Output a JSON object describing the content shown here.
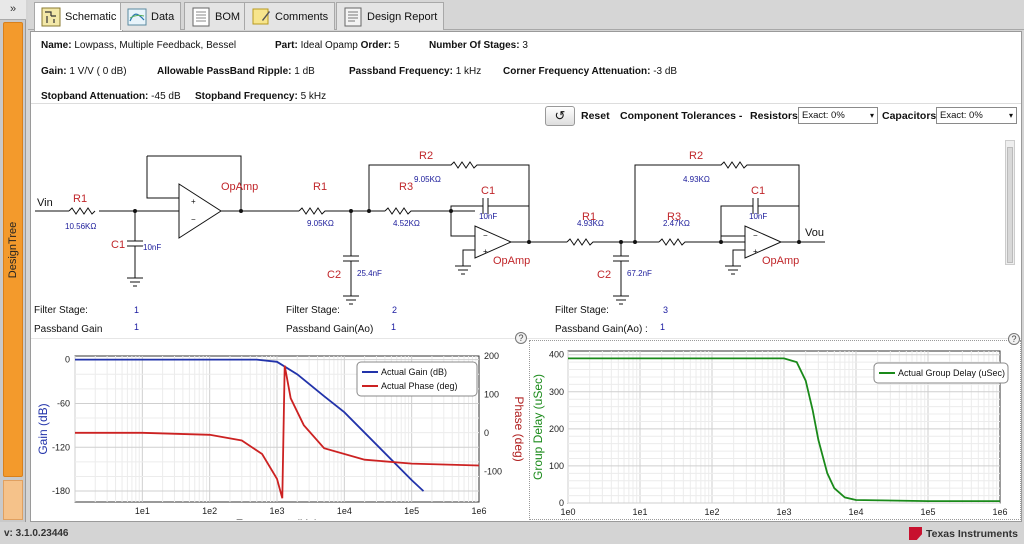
{
  "sidebar": {
    "collapse_glyph": "»",
    "design_tree_label": "DesignTree"
  },
  "tabs": [
    {
      "label": "Schematic",
      "icon": "schematic-icon",
      "active": true
    },
    {
      "label": "Data",
      "icon": "data-icon",
      "active": false
    },
    {
      "label": "BOM",
      "icon": "bom-icon",
      "active": false
    },
    {
      "label": "Comments",
      "icon": "comments-icon",
      "active": false
    },
    {
      "label": "Design Report",
      "icon": "design-report-icon",
      "active": false
    }
  ],
  "summary": {
    "name_label": "Name:",
    "name_value": "Lowpass, Multiple Feedback, Bessel",
    "part_label": "Part:",
    "part_value": "Ideal Opamp",
    "order_label": "Order:",
    "order_value": "5",
    "stages_label": "Number Of Stages:",
    "stages_value": "3",
    "gain_label": "Gain:",
    "gain_value": "1 V/V ( 0 dB)",
    "ripple_label": "Allowable PassBand Ripple:",
    "ripple_value": "1 dB",
    "pbfreq_label": "Passband Frequency:",
    "pbfreq_value": "1 kHz",
    "cfatt_label": "Corner Frequency Attenuation:",
    "cfatt_value": "-3 dB",
    "sbatt_label": "Stopband Attenuation:",
    "sbatt_value": "-45 dB",
    "sbfreq_label": "Stopband Frequency:",
    "sbfreq_value": "5 kHz"
  },
  "toolbar": {
    "reset_glyph": "↺",
    "reset_label": "Reset",
    "tolerances_label": "Component Tolerances -",
    "resistors_label": "Resistors",
    "resistors_value": "Exact: 0%",
    "capacitors_label": "Capacitors",
    "capacitors_value": "Exact: 0%",
    "dropdown_glyph": "▾"
  },
  "schematic": {
    "vin_label": "Vin",
    "vout_label": "Vou",
    "opamp_label": "OpAmp",
    "stage1": {
      "r1_name": "R1",
      "r1_value": "10.56KΩ",
      "c1_name": "C1",
      "c1_value": "10nF"
    },
    "stage2": {
      "r1_name": "R1",
      "r1_value": "9.05KΩ",
      "r2_name": "R2",
      "r2_value": "9.05KΩ",
      "r3_name": "R3",
      "r3_value": "4.52KΩ",
      "c1_name": "C1",
      "c1_value": "10nF",
      "c2_name": "C2",
      "c2_value": "25.4nF"
    },
    "stage3": {
      "r1_name": "R1",
      "r1_value": "4.93KΩ",
      "r2_name": "R2",
      "r2_value": "4.93KΩ",
      "r3_name": "R3",
      "r3_value": "2.47KΩ",
      "c1_name": "C1",
      "c1_value": "10nF",
      "c2_name": "C2",
      "c2_value": "67.2nF"
    }
  },
  "stages": [
    {
      "stage_label": "Filter Stage:",
      "stage_value": "1",
      "gain_label": "Passband Gain",
      "gain_value": "1"
    },
    {
      "stage_label": "Filter Stage:",
      "stage_value": "2",
      "gain_label": "Passband Gain(Ao)",
      "gain_value": "1"
    },
    {
      "stage_label": "Filter Stage:",
      "stage_value": "3",
      "gain_label": "Passband Gain(Ao) :",
      "gain_value": "1"
    }
  ],
  "help_glyph": "?",
  "chart_data": [
    {
      "type": "line",
      "xlabel": "Frequency (Hz)",
      "ylabel": "Gain (dB)",
      "y2label": "Phase (deg)",
      "x_scale": "log",
      "xlim": [
        1,
        1000000
      ],
      "x_ticks": [
        "1e1",
        "1e2",
        "1e3",
        "1e4",
        "1e5",
        "1e6"
      ],
      "ylim": [
        -195,
        5
      ],
      "y_ticks": [
        0,
        -60,
        -120,
        -180
      ],
      "y2lim": [
        -180,
        200
      ],
      "y2_ticks": [
        200,
        100,
        0,
        -100
      ],
      "grid": true,
      "legend_position": "top-right",
      "series": [
        {
          "name": "Actual Gain (dB)",
          "color": "#2233aa",
          "axis": "left",
          "x": [
            1,
            10,
            100,
            500,
            1000,
            2000,
            5000,
            10000,
            100000,
            150000
          ],
          "y": [
            0,
            0,
            0,
            0,
            -3,
            -20,
            -50,
            -72,
            -165,
            -180
          ]
        },
        {
          "name": "Actual Phase (deg)",
          "color": "#cc2222",
          "axis": "right",
          "x": [
            1,
            10,
            100,
            300,
            600,
            1000,
            1200,
            1300,
            1600,
            2500,
            5000,
            20000,
            100000,
            1000000
          ],
          "y": [
            0,
            0,
            -5,
            -20,
            -55,
            -120,
            -170,
            175,
            90,
            20,
            -40,
            -70,
            -80,
            -85
          ]
        }
      ]
    },
    {
      "type": "line",
      "xlabel": "Frequency (Hz)",
      "ylabel": "Group Delay (uSec)",
      "x_scale": "log",
      "xlim": [
        1,
        1000000
      ],
      "x_ticks": [
        "1e0",
        "1e1",
        "1e2",
        "1e3",
        "1e4",
        "1e5",
        "1e6"
      ],
      "ylim": [
        0,
        410
      ],
      "y_ticks": [
        400,
        300,
        200,
        100,
        0
      ],
      "grid": true,
      "legend_position": "top-right",
      "series": [
        {
          "name": "Actual Group Delay (uSec)",
          "color": "#1a8a1a",
          "x": [
            1,
            10,
            100,
            1000,
            1500,
            2000,
            2500,
            3000,
            4000,
            5000,
            7000,
            10000,
            100000,
            1000000
          ],
          "y": [
            390,
            390,
            390,
            390,
            380,
            330,
            250,
            170,
            80,
            40,
            15,
            8,
            5,
            5
          ]
        }
      ]
    }
  ],
  "status": {
    "version": "v: 3.1.0.23446",
    "brand": "Texas Instruments"
  }
}
